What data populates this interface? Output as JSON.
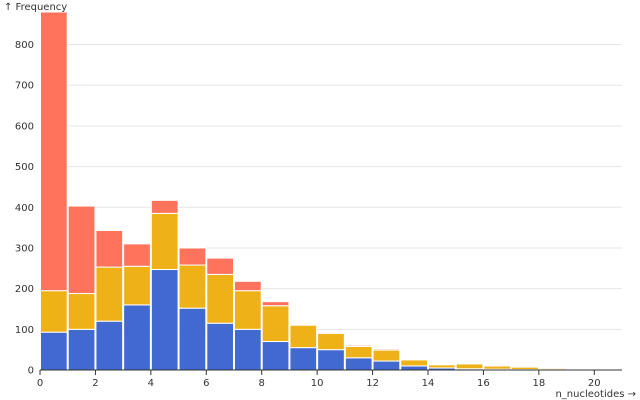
{
  "chart_data": {
    "type": "bar",
    "stacked": true,
    "ylabel": "↑ Frequency",
    "xlabel": "n_nucleotides →",
    "xlim": [
      0,
      21
    ],
    "ylim": [
      0,
      880
    ],
    "bin_width": 1,
    "x_ticks": [
      0,
      2,
      4,
      6,
      8,
      10,
      12,
      14,
      16,
      18,
      20
    ],
    "y_ticks": [
      0,
      100,
      200,
      300,
      400,
      500,
      600,
      700,
      800
    ],
    "grid": true,
    "bins": [
      0,
      1,
      2,
      3,
      4,
      5,
      6,
      7,
      8,
      9,
      10,
      11,
      12,
      13,
      14,
      15,
      16,
      17,
      18,
      19,
      20
    ],
    "series": [
      {
        "color": "#4269d0",
        "values": [
          93,
          100,
          120,
          160,
          247,
          152,
          115,
          100,
          70,
          55,
          50,
          30,
          22,
          10,
          5,
          3,
          2,
          1,
          1,
          0,
          0
        ]
      },
      {
        "color": "#efb118",
        "values": [
          102,
          88,
          133,
          95,
          138,
          106,
          120,
          95,
          88,
          55,
          40,
          28,
          27,
          15,
          8,
          12,
          8,
          6,
          3,
          2,
          1
        ]
      },
      {
        "color": "#ff725c",
        "values": [
          685,
          215,
          90,
          55,
          32,
          42,
          40,
          23,
          10,
          0,
          0,
          3,
          3,
          1,
          1,
          1,
          1,
          0,
          0,
          0,
          0
        ]
      }
    ]
  }
}
